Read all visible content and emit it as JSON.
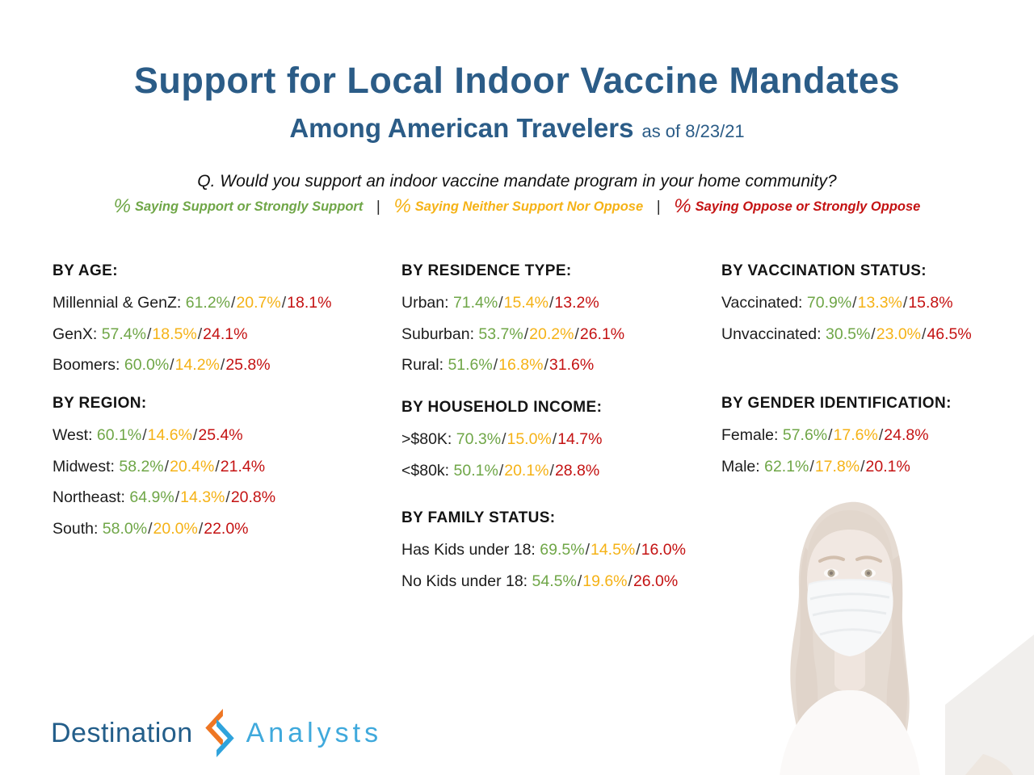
{
  "title": "Support for Local Indoor Vaccine Mandates",
  "subtitle": "Among American Travelers",
  "as_of_label": "as of 8/23/21",
  "question": "Q. Would you support an indoor vaccine mandate program in your home community?",
  "legend": {
    "separator": "|",
    "items": [
      {
        "symbol": "%",
        "label": "Saying Support or Strongly Support",
        "meaning": "support"
      },
      {
        "symbol": "%",
        "label": "Saying Neither Support Nor Oppose",
        "meaning": "neutral"
      },
      {
        "symbol": "%",
        "label": "Saying Oppose or Strongly Oppose",
        "meaning": "oppose"
      }
    ]
  },
  "colors": {
    "support_green": "#6FA647",
    "neutral_gold": "#F5B216",
    "oppose_red": "#C41212",
    "title_blue": "#2B5C87",
    "logo_dark_blue": "#235E8A",
    "logo_light_blue": "#3FA9DC",
    "logo_orange": "#EE7623"
  },
  "sections": [
    {
      "id": "age",
      "header": "BY AGE:",
      "rows": [
        {
          "label": "Millennial & GenZ:",
          "support": "61.2%",
          "neutral": "20.7%",
          "oppose": "18.1%"
        },
        {
          "label": "GenX:",
          "support": "57.4%",
          "neutral": "18.5%",
          "oppose": "24.1%"
        },
        {
          "label": "Boomers:",
          "support": "60.0%",
          "neutral": "14.2%",
          "oppose": "25.8%"
        }
      ]
    },
    {
      "id": "region",
      "header": "BY REGION:",
      "rows": [
        {
          "label": "West:",
          "support": "60.1%",
          "neutral": "14.6%",
          "oppose": "25.4%"
        },
        {
          "label": "Midwest:",
          "support": "58.2%",
          "neutral": "20.4%",
          "oppose": "21.4%"
        },
        {
          "label": "Northeast:",
          "support": "64.9%",
          "neutral": "14.3%",
          "oppose": "20.8%"
        },
        {
          "label": "South:",
          "support": "58.0%",
          "neutral": "20.0%",
          "oppose": "22.0%"
        }
      ]
    },
    {
      "id": "residence",
      "header": "BY RESIDENCE TYPE:",
      "rows": [
        {
          "label": "Urban:",
          "support": "71.4%",
          "neutral": "15.4%",
          "oppose": "13.2%"
        },
        {
          "label": "Suburban:",
          "support": "53.7%",
          "neutral": "20.2%",
          "oppose": "26.1%"
        },
        {
          "label": "Rural:",
          "support": "51.6%",
          "neutral": "16.8%",
          "oppose": "31.6%"
        }
      ]
    },
    {
      "id": "income",
      "header": "BY HOUSEHOLD INCOME:",
      "rows": [
        {
          "label": ">$80K:",
          "support": "70.3%",
          "neutral": "15.0%",
          "oppose": "14.7%"
        },
        {
          "label": "<$80k:",
          "support": "50.1%",
          "neutral": "20.1%",
          "oppose": "28.8%"
        }
      ]
    },
    {
      "id": "family",
      "header": "BY FAMILY STATUS:",
      "rows": [
        {
          "label": "Has Kids under 18:",
          "support": "69.5%",
          "neutral": "14.5%",
          "oppose": "16.0%"
        },
        {
          "label": "No Kids under 18:",
          "support": "54.5%",
          "neutral": "19.6%",
          "oppose": "26.0%"
        }
      ]
    },
    {
      "id": "vaccination",
      "header": "BY VACCINATION STATUS:",
      "rows": [
        {
          "label": "Vaccinated:",
          "support": "70.9%",
          "neutral": "13.3%",
          "oppose": "15.8%"
        },
        {
          "label": "Unvaccinated:",
          "support": "30.5%",
          "neutral": "23.0%",
          "oppose": "46.5%"
        }
      ]
    },
    {
      "id": "gender",
      "header": "BY GENDER IDENTIFICATION:",
      "rows": [
        {
          "label": "Female:",
          "support": "57.6%",
          "neutral": "17.6%",
          "oppose": "24.8%"
        },
        {
          "label": "Male:",
          "support": "62.1%",
          "neutral": "17.8%",
          "oppose": "20.1%"
        }
      ]
    }
  ],
  "logo": {
    "word1": "Destination",
    "word2": "Analysts"
  },
  "chart_data": {
    "type": "table",
    "title": "Support for Local Indoor Vaccine Mandates",
    "subtitle": "Among American Travelers as of 8/23/21",
    "question": "Q. Would you support an indoor vaccine mandate program in your home community?",
    "series_labels": [
      "% Saying Support or Strongly Support",
      "% Saying Neither Support Nor Oppose",
      "% Saying Oppose or Strongly Oppose"
    ],
    "unit": "percent",
    "groups": [
      {
        "group": "By Age",
        "rows": [
          {
            "category": "Millennial & GenZ",
            "support": 61.2,
            "neutral": 20.7,
            "oppose": 18.1
          },
          {
            "category": "GenX",
            "support": 57.4,
            "neutral": 18.5,
            "oppose": 24.1
          },
          {
            "category": "Boomers",
            "support": 60.0,
            "neutral": 14.2,
            "oppose": 25.8
          }
        ]
      },
      {
        "group": "By Region",
        "rows": [
          {
            "category": "West",
            "support": 60.1,
            "neutral": 14.6,
            "oppose": 25.4
          },
          {
            "category": "Midwest",
            "support": 58.2,
            "neutral": 20.4,
            "oppose": 21.4
          },
          {
            "category": "Northeast",
            "support": 64.9,
            "neutral": 14.3,
            "oppose": 20.8
          },
          {
            "category": "South",
            "support": 58.0,
            "neutral": 20.0,
            "oppose": 22.0
          }
        ]
      },
      {
        "group": "By Residence Type",
        "rows": [
          {
            "category": "Urban",
            "support": 71.4,
            "neutral": 15.4,
            "oppose": 13.2
          },
          {
            "category": "Suburban",
            "support": 53.7,
            "neutral": 20.2,
            "oppose": 26.1
          },
          {
            "category": "Rural",
            "support": 51.6,
            "neutral": 16.8,
            "oppose": 31.6
          }
        ]
      },
      {
        "group": "By Household Income",
        "rows": [
          {
            "category": ">$80K",
            "support": 70.3,
            "neutral": 15.0,
            "oppose": 14.7
          },
          {
            "category": "<$80k",
            "support": 50.1,
            "neutral": 20.1,
            "oppose": 28.8
          }
        ]
      },
      {
        "group": "By Family Status",
        "rows": [
          {
            "category": "Has Kids under 18",
            "support": 69.5,
            "neutral": 14.5,
            "oppose": 16.0
          },
          {
            "category": "No Kids under 18",
            "support": 54.5,
            "neutral": 19.6,
            "oppose": 26.0
          }
        ]
      },
      {
        "group": "By Vaccination Status",
        "rows": [
          {
            "category": "Vaccinated",
            "support": 70.9,
            "neutral": 13.3,
            "oppose": 15.8
          },
          {
            "category": "Unvaccinated",
            "support": 30.5,
            "neutral": 23.0,
            "oppose": 46.5
          }
        ]
      },
      {
        "group": "By Gender Identification",
        "rows": [
          {
            "category": "Female",
            "support": 57.6,
            "neutral": 17.6,
            "oppose": 24.8
          },
          {
            "category": "Male",
            "support": 62.1,
            "neutral": 17.8,
            "oppose": 20.1
          }
        ]
      }
    ]
  }
}
